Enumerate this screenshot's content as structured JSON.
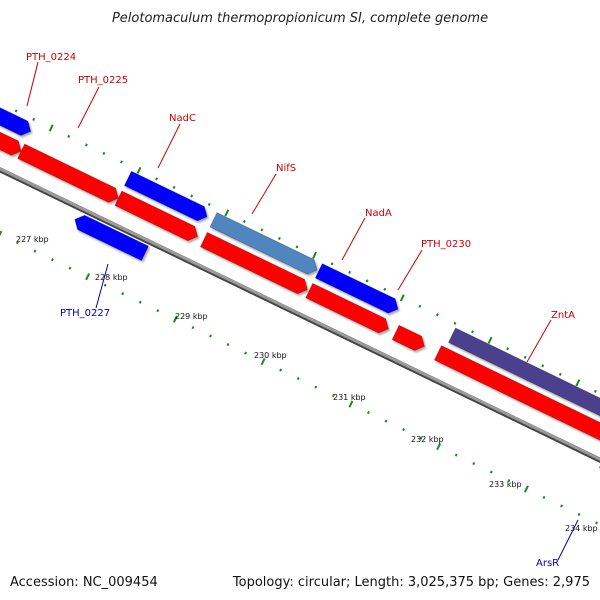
{
  "title": "Pelotomaculum thermopropionicum SI, complete genome",
  "footer": {
    "accession": "Accession: NC_009454",
    "summary": "Topology: circular; Length: 3,025,375 bp; Genes: 2,975"
  },
  "colors": {
    "forward_gene": "#ff0000",
    "reverse_gene": "#0000ff",
    "nifs_gene": "#4f86c0",
    "znta_gene": "#4b3f8e",
    "backbone": "#808080",
    "tick": "#1a8a1a",
    "forward_label": "#cc0000",
    "reverse_label": "#0000aa"
  },
  "ticks": [
    "227 kbp",
    "228 kbp",
    "229 kbp",
    "230 kbp",
    "231 kbp",
    "232 kbp",
    "233 kbp",
    "234 kbp"
  ],
  "gene_labels": [
    {
      "text": "PTH_0224",
      "strand": "forward"
    },
    {
      "text": "PTH_0225",
      "strand": "forward"
    },
    {
      "text": "NadC",
      "strand": "forward"
    },
    {
      "text": "NifS",
      "strand": "forward"
    },
    {
      "text": "NadA",
      "strand": "forward"
    },
    {
      "text": "PTH_0230",
      "strand": "forward"
    },
    {
      "text": "ZntA",
      "strand": "forward"
    },
    {
      "text": "PTH_0227",
      "strand": "reverse"
    },
    {
      "text": "ArsR",
      "strand": "reverse"
    }
  ]
}
